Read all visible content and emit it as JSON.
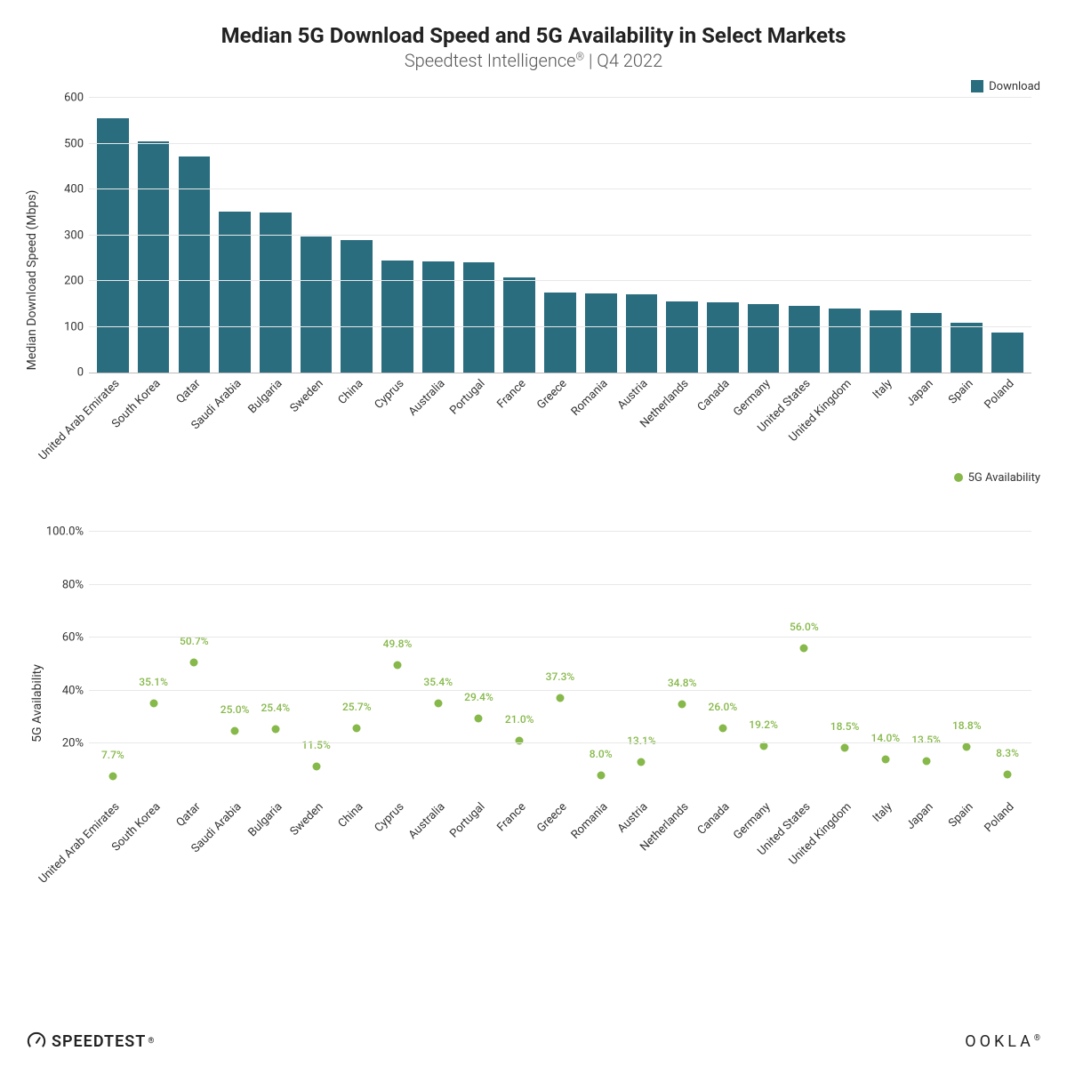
{
  "title": "Median 5G Download Speed and 5G Availability in Select Markets",
  "subtitle_prefix": "Speedtest Intelligence",
  "subtitle_suffix": " | Q4 2022",
  "bar_chart": {
    "type": "bar",
    "ylabel": "Median Download Speed (Mbps)",
    "ylim": [
      0,
      600
    ],
    "yticks": [
      0,
      100,
      200,
      300,
      400,
      500,
      600
    ],
    "bar_color": "#2a6d7f",
    "grid_color": "#e8e8e8",
    "background_color": "#ffffff",
    "legend_label": "Download",
    "categories": [
      "United Arab Emirates",
      "South Korea",
      "Qatar",
      "Saudi Arabia",
      "Bulgaria",
      "Sweden",
      "China",
      "Cyprus",
      "Australia",
      "Portugal",
      "France",
      "Greece",
      "Romania",
      "Austria",
      "Netherlands",
      "Canada",
      "Germany",
      "United States",
      "United Kingdom",
      "Italy",
      "Japan",
      "Spain",
      "Poland"
    ],
    "values": [
      555,
      505,
      472,
      352,
      350,
      298,
      290,
      245,
      243,
      240,
      208,
      175,
      172,
      170,
      155,
      153,
      150,
      145,
      140,
      135,
      130,
      108,
      88
    ]
  },
  "scatter_chart": {
    "type": "scatter",
    "ylabel": "5G Availability",
    "ylim": [
      0,
      100
    ],
    "yticks": [
      20,
      40,
      60,
      80,
      100
    ],
    "ytick_labels": [
      "20%",
      "40%",
      "60%",
      "80%",
      "100.0%"
    ],
    "dot_color": "#86b84a",
    "label_color": "#86b84a",
    "grid_color": "#e8e8e8",
    "legend_label": "5G Availability",
    "categories": [
      "United Arab Emirates",
      "South Korea",
      "Qatar",
      "Saudi Arabia",
      "Bulgaria",
      "Sweden",
      "China",
      "Cyprus",
      "Australia",
      "Portugal",
      "France",
      "Greece",
      "Romania",
      "Austria",
      "Netherlands",
      "Canada",
      "Germany",
      "United States",
      "United Kingdom",
      "Italy",
      "Japan",
      "Spain",
      "Poland"
    ],
    "values": [
      7.7,
      35.1,
      50.7,
      25.0,
      25.4,
      11.5,
      25.7,
      49.8,
      35.4,
      29.4,
      21.0,
      37.3,
      8.0,
      13.1,
      34.8,
      26.0,
      19.2,
      56.0,
      18.5,
      14.0,
      13.5,
      18.8,
      8.3
    ],
    "value_labels": [
      "7.7%",
      "35.1%",
      "50.7%",
      "25.0%",
      "25.4%",
      "11.5%",
      "25.7%",
      "49.8%",
      "35.4%",
      "29.4%",
      "21.0%",
      "37.3%",
      "8.0%",
      "13.1%",
      "34.8%",
      "26.0%",
      "19.2%",
      "56.0%",
      "18.5%",
      "14.0%",
      "13.5%",
      "18.8%",
      "8.3%"
    ]
  },
  "footer": {
    "left_brand": "SPEEDTEST",
    "right_brand": "OOKLA"
  }
}
